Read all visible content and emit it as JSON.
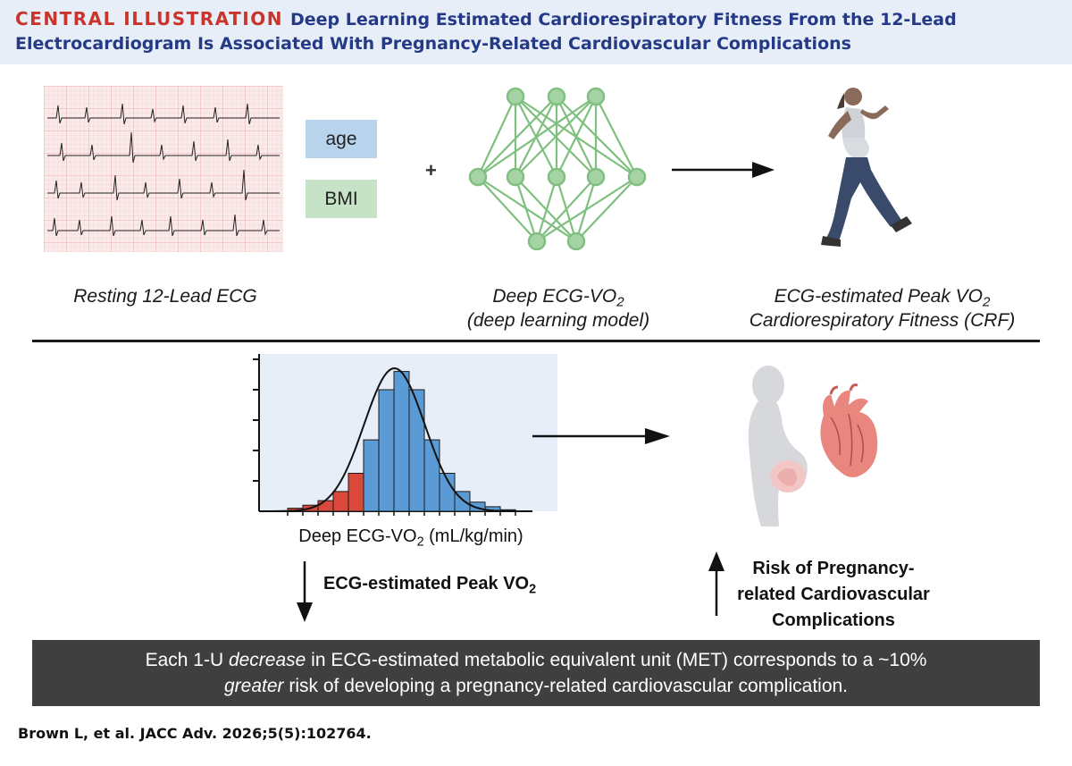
{
  "header": {
    "label": "CENTRAL ILLUSTRATION",
    "title": "Deep Learning Estimated Cardiorespiratory Fitness From the 12-Lead Electrocardiogram Is Associated With Pregnancy-Related Cardiovascular Complications"
  },
  "inputs": {
    "age": "age",
    "bmi": "BMI",
    "plus": "+"
  },
  "captions": {
    "ecg": "Resting 12-Lead ECG",
    "model_line1_pre": "Deep ECG-VO",
    "model_line1_sub": "2",
    "model_line2": "(deep learning model)",
    "crf_line1_pre": "ECG-estimated Peak VO",
    "crf_line1_sub": "2",
    "crf_line2": "Cardiorespiratory Fitness (CRF)"
  },
  "histogram": {
    "xlabel_pre": "Deep ECG-VO",
    "xlabel_sub": "2",
    "xlabel_post": " (mL/kg/min)"
  },
  "chart_data": {
    "type": "bar",
    "bar_heights_relative": [
      0.02,
      0.04,
      0.07,
      0.13,
      0.25,
      0.47,
      0.8,
      0.92,
      0.8,
      0.47,
      0.25,
      0.13,
      0.06,
      0.03,
      0.01
    ],
    "highlight_low_count": 5,
    "colors": {
      "low": "#d9483b",
      "high": "#5b9bd5",
      "background": "#e8eef7",
      "curve": "#111111"
    }
  },
  "findings": {
    "down_pre": "ECG-estimated Peak VO",
    "down_sub": "2",
    "risk": "Risk of Pregnancy-related Cardiovascular Complications"
  },
  "banner": {
    "line1_pre": "Each 1-U ",
    "line1_em": "decrease",
    "line1_post": " in ECG-estimated metabolic equivalent unit (MET) corresponds to a ~10%",
    "line2_em": "greater",
    "line2_post": " risk of developing a pregnancy-related cardiovascular complication."
  },
  "citation": "Brown L, et al. JACC Adv. 2026;5(5):102764.",
  "colors": {
    "header_bg": "#e7eef7",
    "header_label": "#c8352c",
    "header_title": "#253a86",
    "nn_green": "#7fbf7f",
    "age_box": "#b8d3ec",
    "bmi_box": "#c6e2c7",
    "banner_bg": "#3f3f3f"
  }
}
